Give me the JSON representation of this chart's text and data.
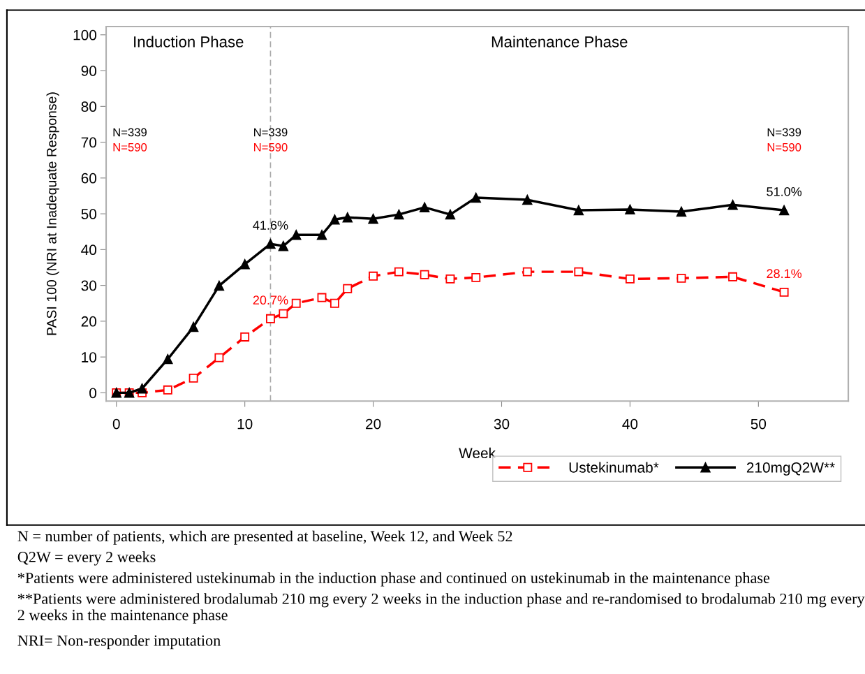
{
  "chart_data": {
    "type": "line",
    "xlabel": "Week",
    "ylabel": "PASI 100 (NRI at Inadequate Response)",
    "x": [
      0,
      1,
      2,
      4,
      6,
      8,
      10,
      12,
      13,
      14,
      16,
      17,
      18,
      20,
      22,
      24,
      26,
      28,
      32,
      36,
      40,
      44,
      48,
      52
    ],
    "series": [
      {
        "name": "Ustekinumab*",
        "color": "#ff0000",
        "marker": "square",
        "line_style": "dashed",
        "values": [
          0,
          0,
          0,
          0.8,
          4.1,
          9.8,
          15.6,
          20.7,
          22.1,
          25.0,
          26.6,
          25.0,
          29.1,
          32.6,
          33.8,
          33.0,
          31.8,
          32.2,
          33.8,
          33.8,
          31.8,
          32.0,
          32.4,
          28.1
        ],
        "value_labels": [
          null,
          null,
          null,
          null,
          null,
          null,
          null,
          "20.7%",
          null,
          null,
          null,
          null,
          null,
          null,
          null,
          null,
          null,
          null,
          null,
          null,
          null,
          null,
          null,
          "28.1%"
        ]
      },
      {
        "name": "210mgQ2W**",
        "color": "#000000",
        "marker": "triangle",
        "line_style": "solid",
        "values": [
          0,
          0,
          1.2,
          9.4,
          18.4,
          29.9,
          35.9,
          41.6,
          41.0,
          44.1,
          44.1,
          48.4,
          49.0,
          48.6,
          49.8,
          51.8,
          49.8,
          54.5,
          53.9,
          51.0,
          51.2,
          50.6,
          52.5,
          51.0
        ],
        "value_labels": [
          null,
          null,
          null,
          null,
          null,
          null,
          null,
          "41.6%",
          null,
          null,
          null,
          null,
          null,
          null,
          null,
          null,
          null,
          null,
          null,
          null,
          null,
          null,
          null,
          "51.0%"
        ]
      }
    ],
    "xlim": [
      -0.8,
      57
    ],
    "ylim": [
      -2.3,
      102.3
    ],
    "xticks": [
      0,
      10,
      20,
      30,
      40,
      50
    ],
    "yticks": [
      0,
      10,
      20,
      30,
      40,
      50,
      60,
      70,
      80,
      90,
      100
    ],
    "grid": false,
    "legend": "bottom right",
    "ref_lines": [
      {
        "axis": "x",
        "value": 12,
        "color": "#aaaaaa",
        "line_style": "dashed"
      }
    ],
    "annotations": [
      "Induction Phase",
      "Maintenance Phase",
      "N=339",
      "N=590",
      "N=339",
      "N=590",
      "N=339",
      "N=590",
      "N = number of patients, which are presented at baseline, Week 12, and Week 52",
      "Q2W = every 2 weeks",
      "*Patients were administered ustekinumab in the induction phase and continued on ustekinumab in the maintenance phase",
      "**Patients were administered brodalumab 210 mg every 2 weeks in the induction phase and re-randomised to brodalumab 210 mg every 2 weeks in the maintenance phase",
      "NRI= Non-responder imputation"
    ]
  }
}
